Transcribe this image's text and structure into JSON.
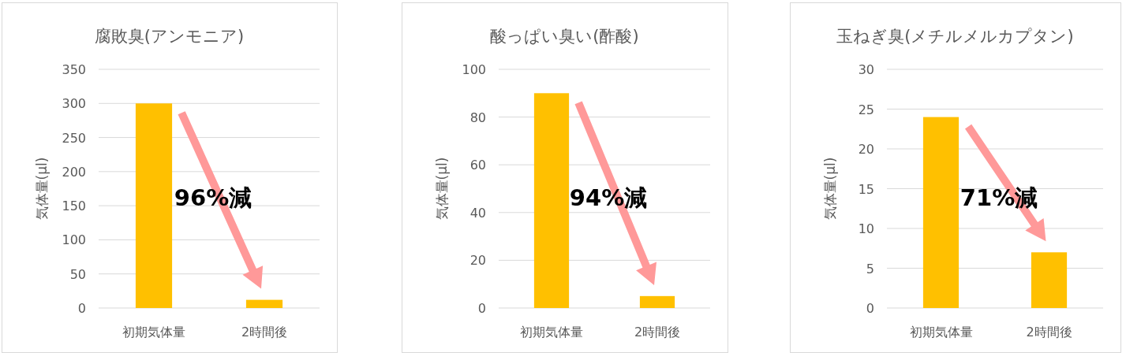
{
  "chart_data": [
    {
      "type": "bar",
      "title": "腐敗臭(アンモニア)",
      "ylabel": "気体量(μl)",
      "categories": [
        "初期気体量",
        "2時間後"
      ],
      "values": [
        300,
        12
      ],
      "color": "#ffc000",
      "ylim": [
        0,
        350
      ],
      "yticks": [
        0,
        50,
        100,
        150,
        200,
        250,
        300,
        350
      ],
      "grid": "y",
      "annotations": [
        "96%減"
      ]
    },
    {
      "type": "bar",
      "title": "酸っぱい臭い(酢酸)",
      "ylabel": "気体量(μl)",
      "categories": [
        "初期気体量",
        "2時間後"
      ],
      "values": [
        90,
        5
      ],
      "color": "#ffc000",
      "ylim": [
        0,
        100
      ],
      "yticks": [
        0,
        20,
        40,
        60,
        80,
        100
      ],
      "grid": "y",
      "annotations": [
        "94%減"
      ]
    },
    {
      "type": "bar",
      "title": "玉ねぎ臭(メチルメルカプタン)",
      "ylabel": "気体量(μl)",
      "categories": [
        "初期気体量",
        "2時間後"
      ],
      "values": [
        24,
        7
      ],
      "color": "#ffc000",
      "ylim": [
        0,
        30
      ],
      "yticks": [
        0,
        5,
        10,
        15,
        20,
        25,
        30
      ],
      "grid": "y",
      "annotations": [
        "71%減"
      ]
    }
  ]
}
